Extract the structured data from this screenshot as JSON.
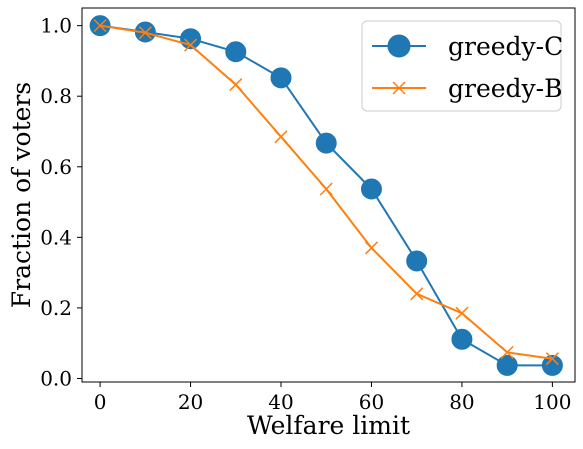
{
  "chart_data": {
    "type": "line",
    "x": [
      0,
      10,
      20,
      30,
      40,
      50,
      60,
      70,
      80,
      90,
      100
    ],
    "xlabel": "Welfare limit",
    "ylabel": "Fraction of voters",
    "xlim": [
      -4,
      105
    ],
    "ylim": [
      -0.01,
      1.05
    ],
    "xticks": [
      "0",
      "20",
      "40",
      "60",
      "80",
      "100"
    ],
    "yticks": [
      "0.0",
      "0.2",
      "0.4",
      "0.6",
      "0.8",
      "1.0"
    ],
    "grid": false,
    "legend_position": "top-right",
    "series": [
      {
        "name": "greedy-C",
        "marker": "circle",
        "color": "#1f77b4",
        "values": [
          1.0,
          0.982,
          0.963,
          0.926,
          0.852,
          0.667,
          0.537,
          0.333,
          0.111,
          0.037,
          0.037
        ]
      },
      {
        "name": "greedy-B",
        "marker": "x",
        "color": "#ff7f0e",
        "values": [
          1.0,
          0.98,
          0.945,
          0.833,
          0.685,
          0.537,
          0.37,
          0.24,
          0.185,
          0.074,
          0.056
        ]
      }
    ]
  }
}
